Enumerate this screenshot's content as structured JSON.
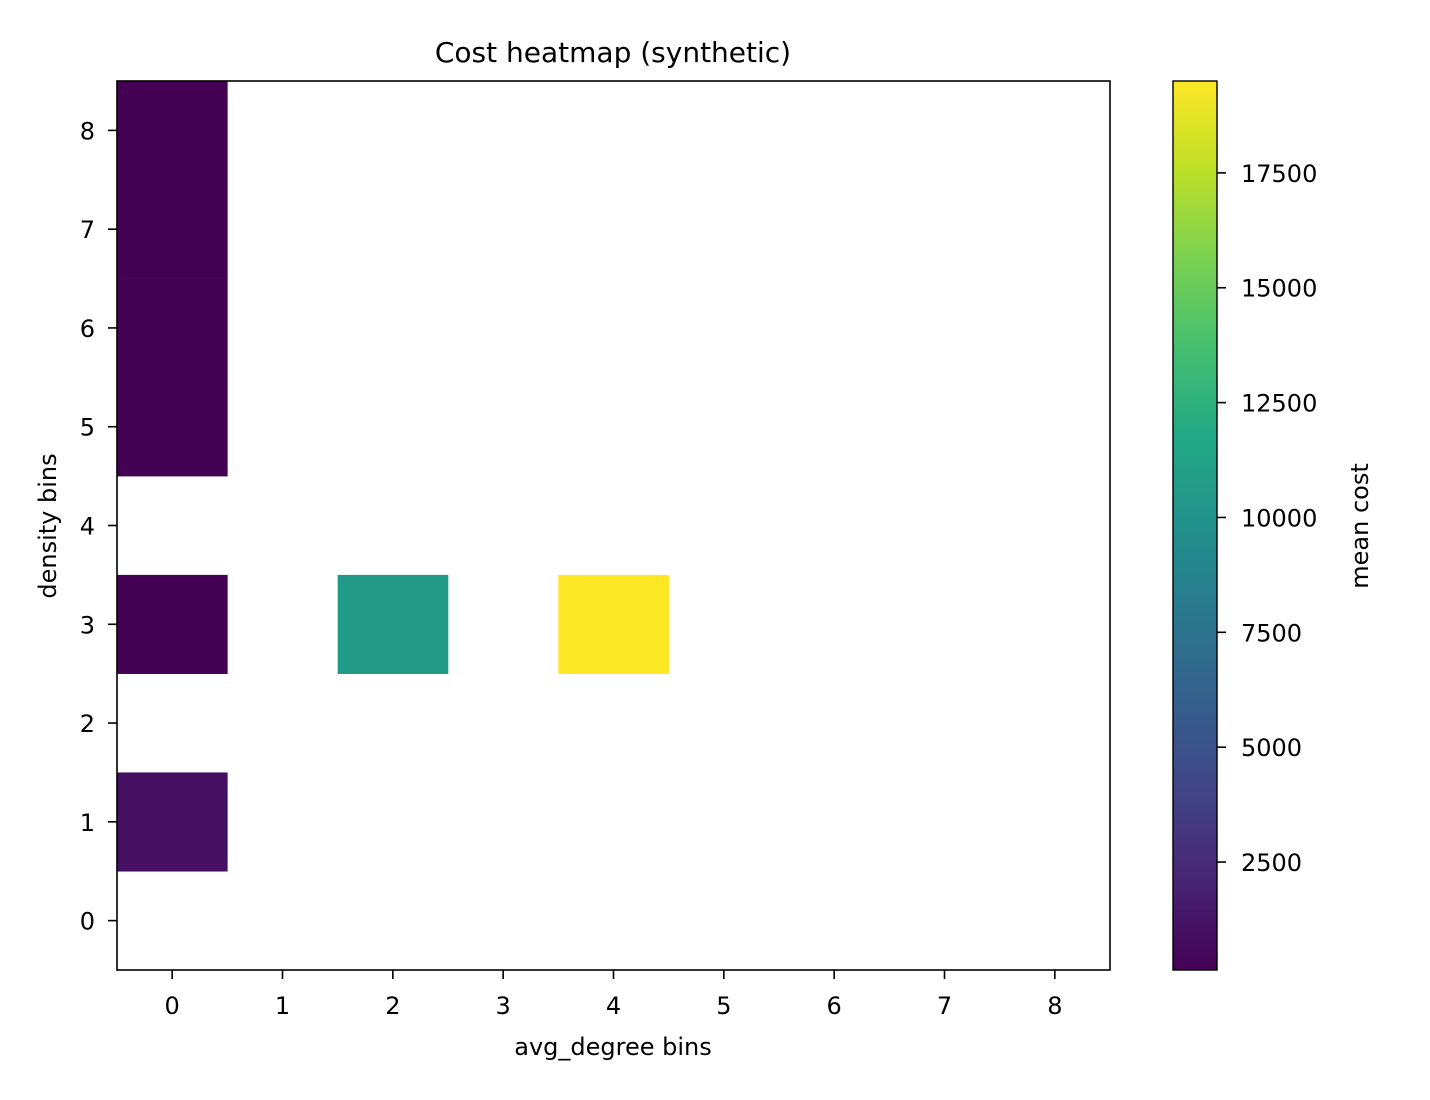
{
  "chart_data": {
    "type": "heatmap",
    "title": "Cost heatmap (synthetic)",
    "xlabel": "avg_degree bins",
    "ylabel": "density bins",
    "x_categories": [
      "0",
      "1",
      "2",
      "3",
      "4",
      "5",
      "6",
      "7",
      "8"
    ],
    "y_categories": [
      "0",
      "1",
      "2",
      "3",
      "4",
      "5",
      "6",
      "7",
      "8"
    ],
    "cells": [
      {
        "x": 0,
        "y": 1,
        "value": 1000
      },
      {
        "x": 0,
        "y": 3,
        "value": 150
      },
      {
        "x": 2,
        "y": 3,
        "value": 10500
      },
      {
        "x": 4,
        "y": 3,
        "value": 19500
      },
      {
        "x": 0,
        "y": 5,
        "value": 150
      },
      {
        "x": 0,
        "y": 6,
        "value": 150
      },
      {
        "x": 0,
        "y": 7,
        "value": 150
      },
      {
        "x": 0,
        "y": 8,
        "value": 150
      }
    ],
    "colorbar": {
      "label": "mean cost",
      "min": 150,
      "max": 19500,
      "ticks": [
        2500,
        5000,
        7500,
        10000,
        12500,
        15000,
        17500
      ],
      "tick_labels": [
        "2500",
        "5000",
        "7500",
        "10000",
        "12500",
        "15000",
        "17500"
      ],
      "colormap": "viridis"
    },
    "grid": false
  }
}
